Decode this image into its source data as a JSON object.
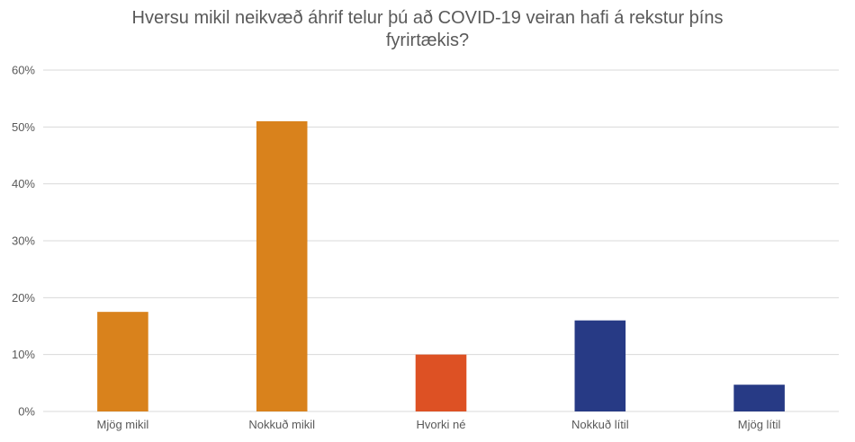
{
  "chart_data": {
    "type": "bar",
    "title_line1": "Hversu mikil neikvæð áhrif telur þú að COVID-19 veiran hafi á rekstur þíns",
    "title_line2": "fyrirtækis?",
    "categories": [
      "Mjög mikil",
      "Nokkuð mikil",
      "Hvorki né",
      "Nokkuð lítil",
      "Mjög lítil"
    ],
    "values": [
      17.5,
      51,
      10,
      16,
      4.7
    ],
    "colors": [
      "#D9821C",
      "#D9821C",
      "#DD5124",
      "#273A85",
      "#273A85"
    ],
    "ylim": [
      0,
      60
    ],
    "yticks": [
      0,
      10,
      20,
      30,
      40,
      50,
      60
    ],
    "ytick_labels": [
      "0%",
      "10%",
      "20%",
      "30%",
      "40%",
      "50%",
      "60%"
    ],
    "grid": true,
    "legend": "none",
    "gridline_color": "#D9D9D9"
  }
}
